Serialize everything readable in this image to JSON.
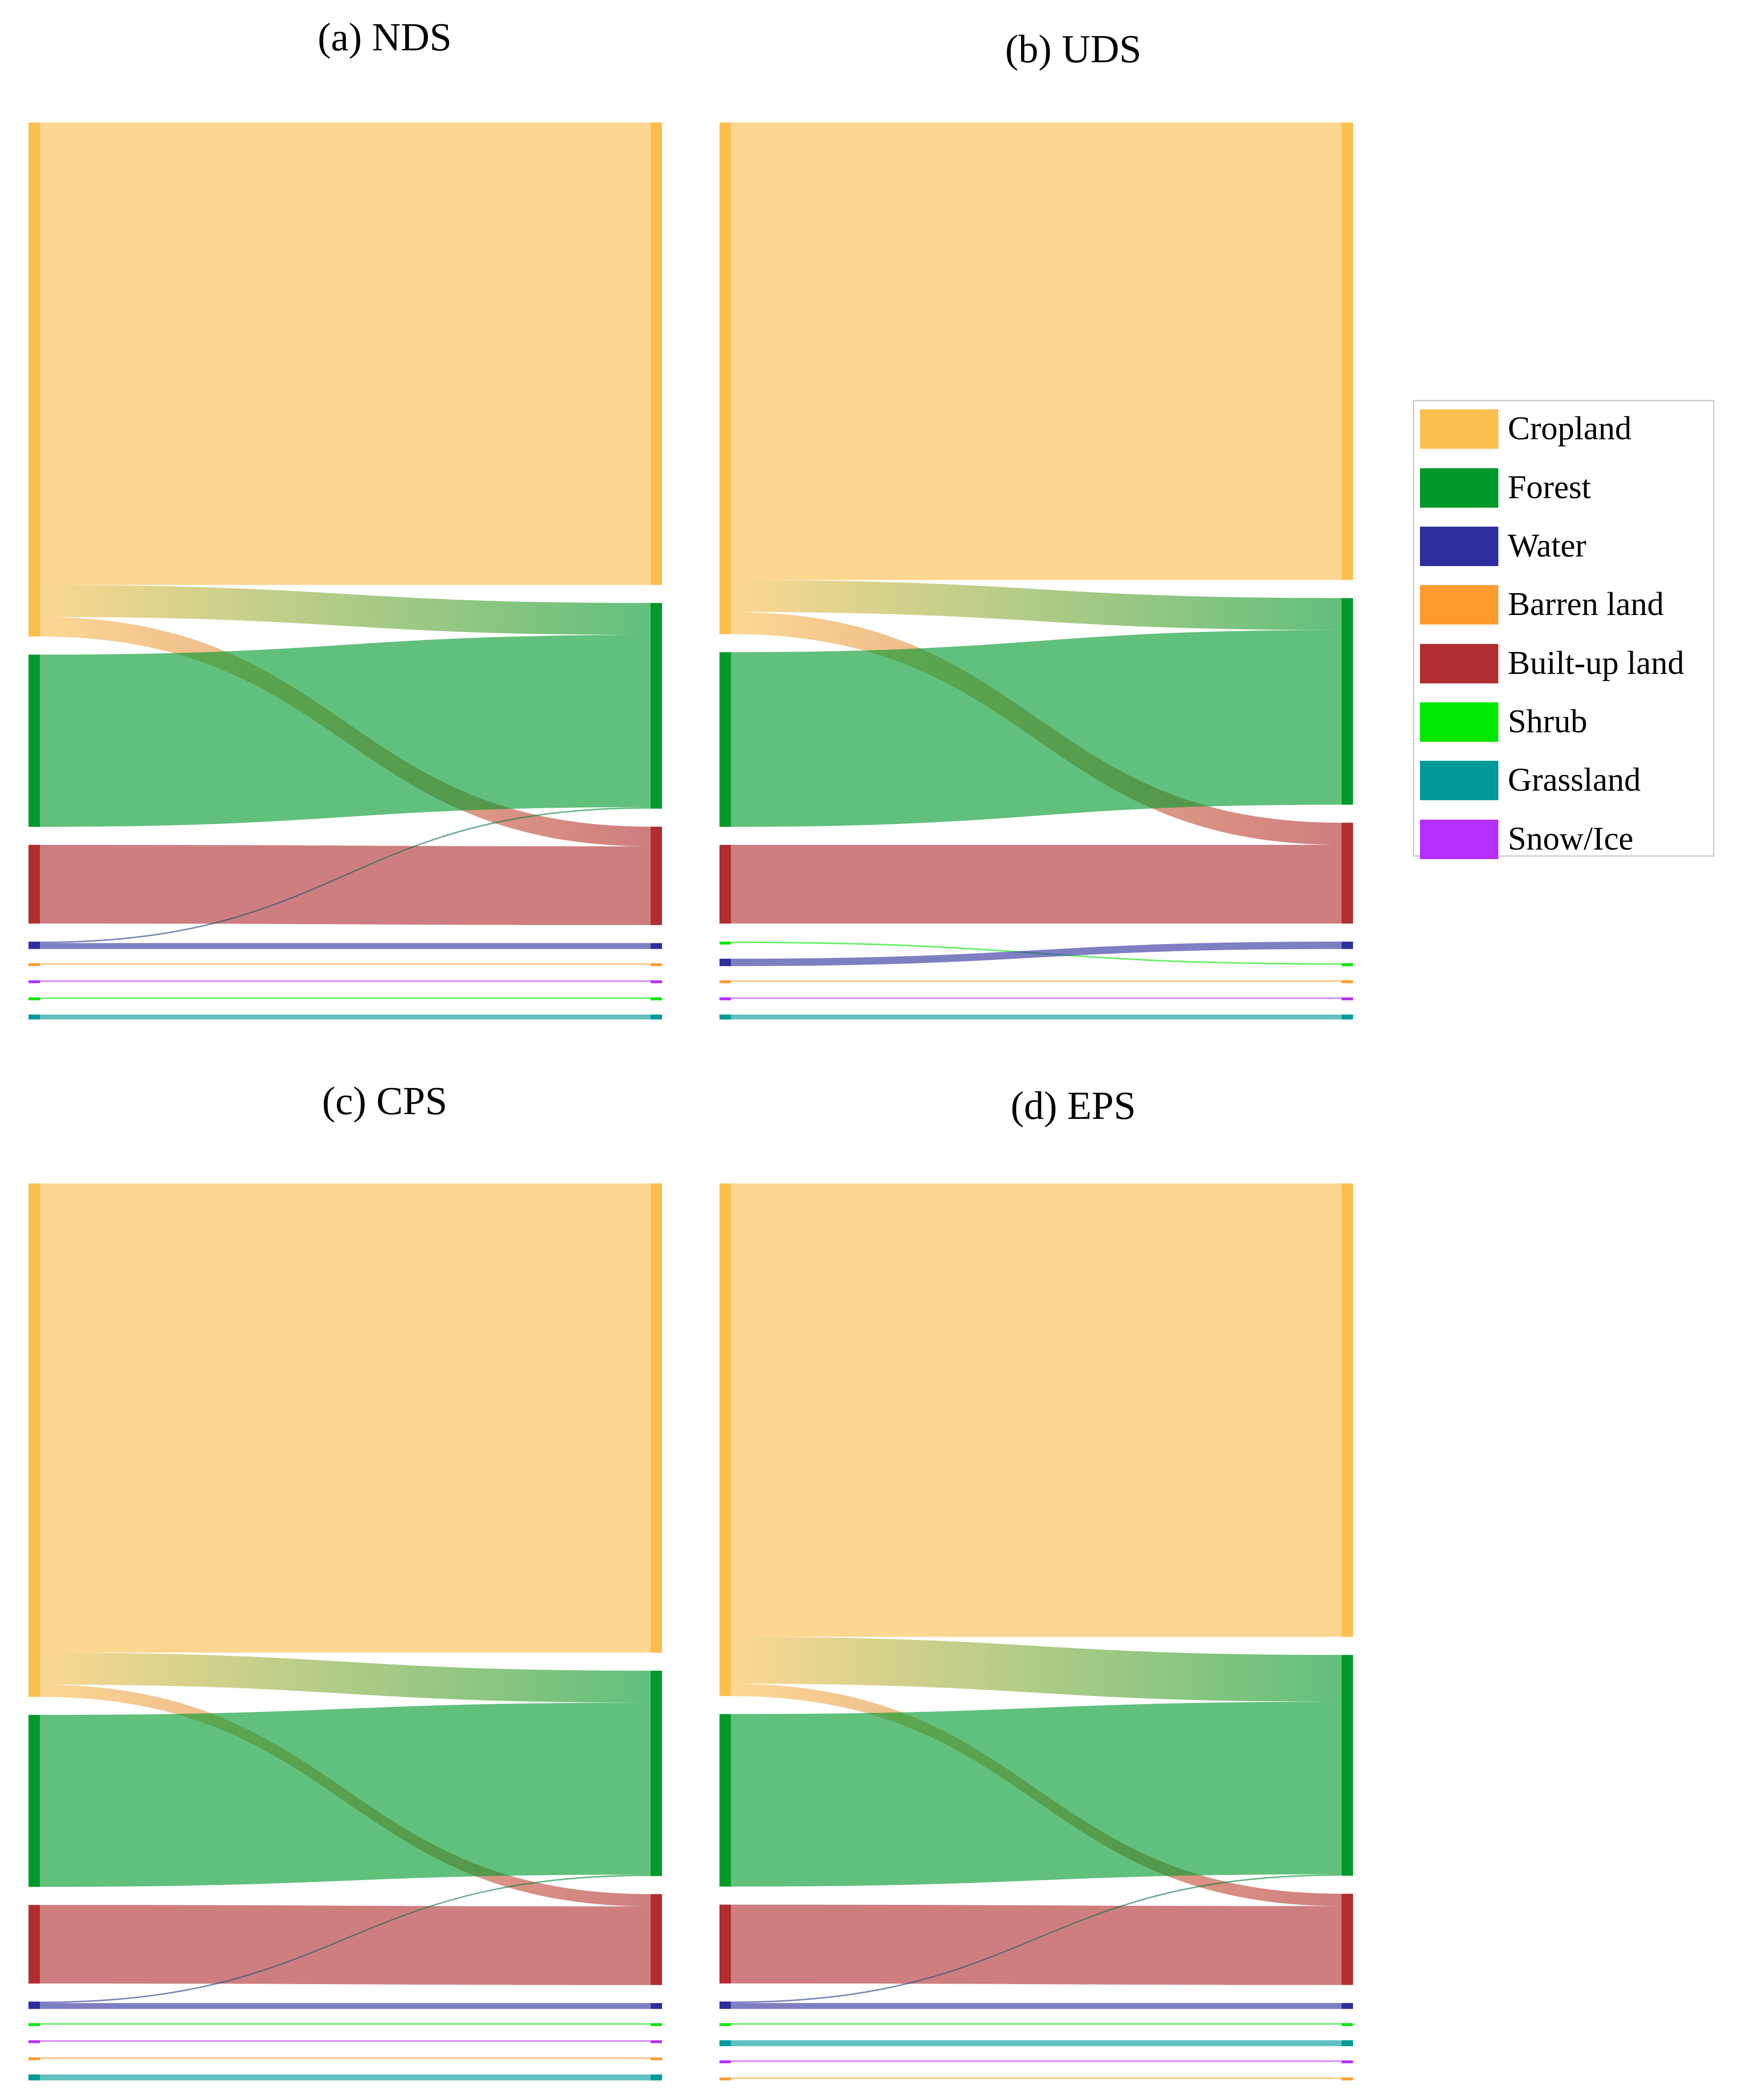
{
  "legend": {
    "items": [
      {
        "label": "Cropland",
        "color": "#FBBF4F"
      },
      {
        "label": "Forest",
        "color": "#00992B"
      },
      {
        "label": "Water",
        "color": "#2E2E9E"
      },
      {
        "label": "Barren land",
        "color": "#FF9A2E"
      },
      {
        "label": "Built-up land",
        "color": "#B02E30"
      },
      {
        "label": "Shrub",
        "color": "#00E800"
      },
      {
        "label": "Grassland",
        "color": "#009999"
      },
      {
        "label": "Snow/Ice",
        "color": "#B42EFF"
      }
    ]
  },
  "chart_data": [
    {
      "type": "sankey",
      "title": "(a) NDS",
      "categories": [
        "Cropland",
        "Forest",
        "Water",
        "Barren land",
        "Built-up land",
        "Shrub",
        "Grassland",
        "Snow/Ice"
      ],
      "source_order": [
        "Cropland",
        "Forest",
        "Built-up land",
        "Water",
        "Barren land",
        "Snow/Ice",
        "Shrub",
        "Grassland"
      ],
      "target_order": [
        "Cropland",
        "Forest",
        "Built-up land",
        "Water",
        "Barren land",
        "Snow/Ice",
        "Shrub",
        "Grassland"
      ],
      "units": "relative area",
      "flows": [
        {
          "from": "Cropland",
          "to": "Cropland",
          "value": 940
        },
        {
          "from": "Cropland",
          "to": "Forest",
          "value": 65
        },
        {
          "from": "Cropland",
          "to": "Built-up land",
          "value": 40
        },
        {
          "from": "Forest",
          "to": "Forest",
          "value": 350
        },
        {
          "from": "Built-up land",
          "to": "Built-up land",
          "value": 160
        },
        {
          "from": "Water",
          "to": "Water",
          "value": 12
        },
        {
          "from": "Water",
          "to": "Forest",
          "value": 3
        },
        {
          "from": "Barren land",
          "to": "Barren land",
          "value": 3
        },
        {
          "from": "Snow/Ice",
          "to": "Snow/Ice",
          "value": 3
        },
        {
          "from": "Shrub",
          "to": "Shrub",
          "value": 3
        },
        {
          "from": "Grassland",
          "to": "Grassland",
          "value": 10
        }
      ]
    },
    {
      "type": "sankey",
      "title": "(b) UDS",
      "categories": [
        "Cropland",
        "Forest",
        "Water",
        "Barren land",
        "Built-up land",
        "Shrub",
        "Grassland",
        "Snow/Ice"
      ],
      "source_order": [
        "Cropland",
        "Forest",
        "Built-up land",
        "Shrub",
        "Water",
        "Barren land",
        "Snow/Ice",
        "Grassland"
      ],
      "target_order": [
        "Cropland",
        "Forest",
        "Built-up land",
        "Water",
        "Shrub",
        "Barren land",
        "Snow/Ice",
        "Grassland"
      ],
      "units": "relative area",
      "flows": [
        {
          "from": "Cropland",
          "to": "Cropland",
          "value": 930
        },
        {
          "from": "Cropland",
          "to": "Forest",
          "value": 65
        },
        {
          "from": "Cropland",
          "to": "Built-up land",
          "value": 45
        },
        {
          "from": "Forest",
          "to": "Forest",
          "value": 355
        },
        {
          "from": "Built-up land",
          "to": "Built-up land",
          "value": 160
        },
        {
          "from": "Shrub",
          "to": "Shrub",
          "value": 3
        },
        {
          "from": "Water",
          "to": "Water",
          "value": 15
        },
        {
          "from": "Barren land",
          "to": "Barren land",
          "value": 3
        },
        {
          "from": "Snow/Ice",
          "to": "Snow/Ice",
          "value": 3
        },
        {
          "from": "Grassland",
          "to": "Grassland",
          "value": 10
        }
      ]
    },
    {
      "type": "sankey",
      "title": "(c) CPS",
      "categories": [
        "Cropland",
        "Forest",
        "Water",
        "Barren land",
        "Built-up land",
        "Shrub",
        "Grassland",
        "Snow/Ice"
      ],
      "source_order": [
        "Cropland",
        "Forest",
        "Built-up land",
        "Water",
        "Shrub",
        "Snow/Ice",
        "Barren land",
        "Grassland"
      ],
      "target_order": [
        "Cropland",
        "Forest",
        "Built-up land",
        "Water",
        "Shrub",
        "Snow/Ice",
        "Barren land",
        "Grassland"
      ],
      "units": "relative area",
      "flows": [
        {
          "from": "Cropland",
          "to": "Cropland",
          "value": 955
        },
        {
          "from": "Cropland",
          "to": "Forest",
          "value": 65
        },
        {
          "from": "Cropland",
          "to": "Built-up land",
          "value": 25
        },
        {
          "from": "Forest",
          "to": "Forest",
          "value": 350
        },
        {
          "from": "Built-up land",
          "to": "Built-up land",
          "value": 160
        },
        {
          "from": "Water",
          "to": "Water",
          "value": 12
        },
        {
          "from": "Water",
          "to": "Forest",
          "value": 3
        },
        {
          "from": "Shrub",
          "to": "Shrub",
          "value": 3
        },
        {
          "from": "Snow/Ice",
          "to": "Snow/Ice",
          "value": 3
        },
        {
          "from": "Barren land",
          "to": "Barren land",
          "value": 3
        },
        {
          "from": "Grassland",
          "to": "Grassland",
          "value": 12
        }
      ]
    },
    {
      "type": "sankey",
      "title": "(d) EPS",
      "categories": [
        "Cropland",
        "Forest",
        "Water",
        "Barren land",
        "Built-up land",
        "Shrub",
        "Grassland",
        "Snow/Ice"
      ],
      "source_order": [
        "Cropland",
        "Forest",
        "Built-up land",
        "Water",
        "Shrub",
        "Grassland",
        "Snow/Ice",
        "Barren land"
      ],
      "target_order": [
        "Cropland",
        "Forest",
        "Built-up land",
        "Water",
        "Shrub",
        "Grassland",
        "Snow/Ice",
        "Barren land"
      ],
      "units": "relative area",
      "flows": [
        {
          "from": "Cropland",
          "to": "Cropland",
          "value": 920
        },
        {
          "from": "Cropland",
          "to": "Forest",
          "value": 95
        },
        {
          "from": "Cropland",
          "to": "Built-up land",
          "value": 25
        },
        {
          "from": "Forest",
          "to": "Forest",
          "value": 350
        },
        {
          "from": "Built-up land",
          "to": "Built-up land",
          "value": 160
        },
        {
          "from": "Water",
          "to": "Water",
          "value": 12
        },
        {
          "from": "Water",
          "to": "Forest",
          "value": 3
        },
        {
          "from": "Shrub",
          "to": "Shrub",
          "value": 3
        },
        {
          "from": "Grassland",
          "to": "Grassland",
          "value": 12
        },
        {
          "from": "Snow/Ice",
          "to": "Snow/Ice",
          "value": 3
        },
        {
          "from": "Barren land",
          "to": "Barren land",
          "value": 3
        }
      ]
    }
  ]
}
